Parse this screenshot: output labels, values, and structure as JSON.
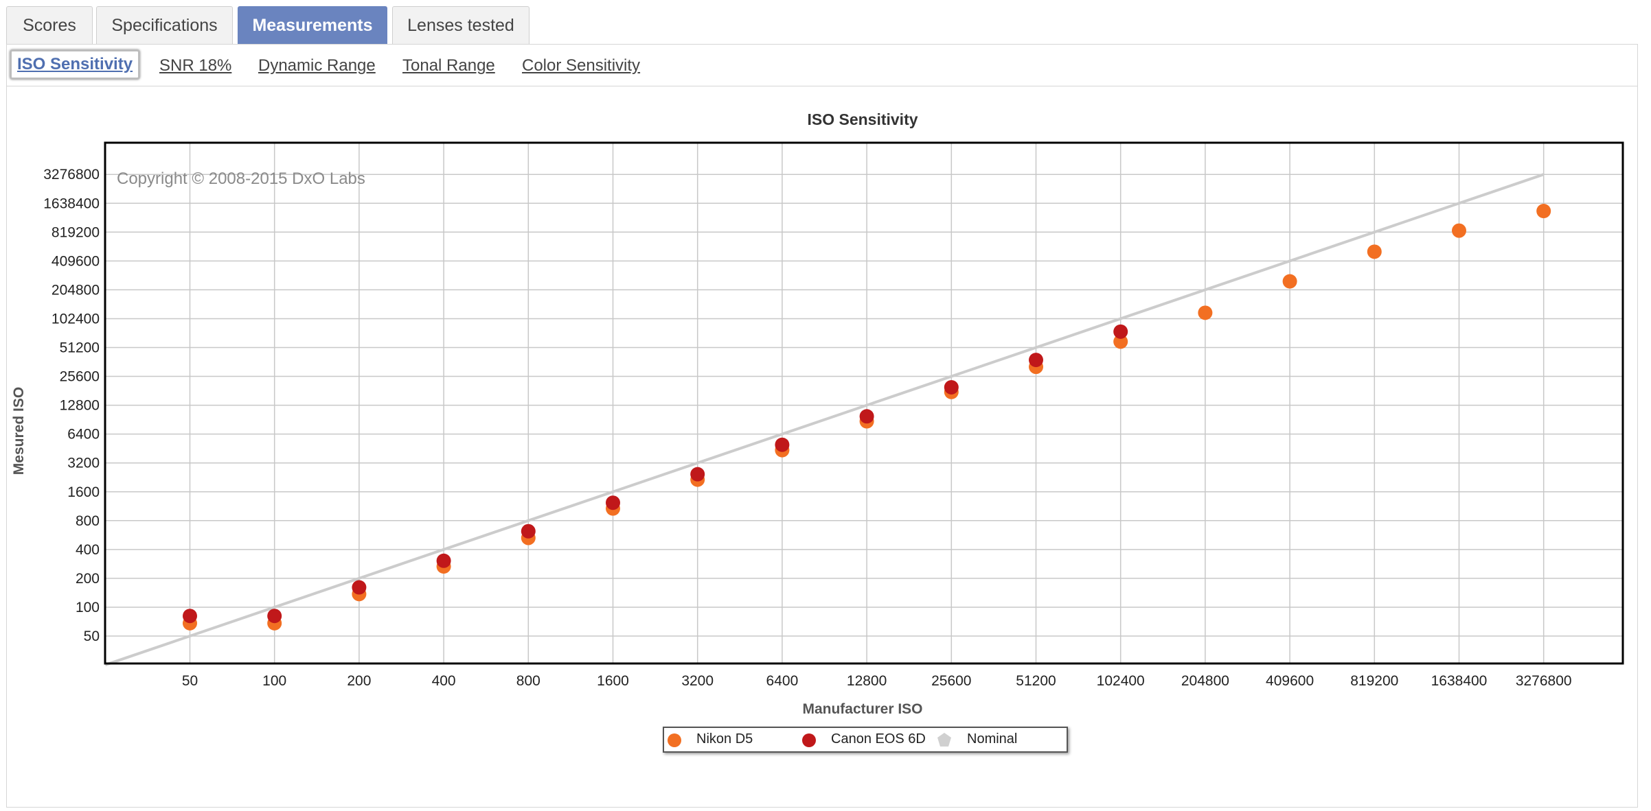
{
  "tabs": [
    {
      "label": "Scores",
      "active": false
    },
    {
      "label": "Specifications",
      "active": false
    },
    {
      "label": "Measurements",
      "active": true
    },
    {
      "label": "Lenses tested",
      "active": false
    }
  ],
  "subtabs": [
    {
      "label": "ISO Sensitivity",
      "active": true
    },
    {
      "label": "SNR 18%",
      "active": false
    },
    {
      "label": "Dynamic Range",
      "active": false
    },
    {
      "label": "Tonal Range",
      "active": false
    },
    {
      "label": "Color Sensitivity",
      "active": false
    }
  ],
  "colors": {
    "accent": "#6a84bf",
    "nikon": "#f26f22",
    "canon": "#c0181a",
    "nominal": "#cccccc"
  },
  "chart_data": {
    "type": "scatter",
    "title": "ISO Sensitivity",
    "xlabel": "Manufacturer ISO",
    "ylabel": "Mesured ISO",
    "watermark": "Copyright © 2008-2015 DxO Labs",
    "x_scale": "log2",
    "y_scale": "log2",
    "x_ticks": [
      "50",
      "100",
      "200",
      "400",
      "800",
      "1600",
      "3200",
      "6400",
      "12800",
      "25600",
      "51200",
      "102400",
      "204800",
      "409600",
      "819200",
      "1638400",
      "3276800"
    ],
    "y_ticks": [
      "50",
      "100",
      "200",
      "400",
      "800",
      "1600",
      "3200",
      "6400",
      "12800",
      "25600",
      "51200",
      "102400",
      "204800",
      "409600",
      "819200",
      "1638400",
      "3276800"
    ],
    "grid": true,
    "legend_position": "bottom-center",
    "series": [
      {
        "name": "Nikon D5",
        "color": "#f26f22",
        "x": [
          50,
          100,
          200,
          400,
          800,
          1600,
          3200,
          6400,
          12800,
          25600,
          51200,
          102400,
          204800,
          409600,
          819200,
          1638400,
          3276800
        ],
        "y": [
          68,
          68,
          137,
          266,
          528,
          1070,
          2140,
          4350,
          8700,
          17600,
          32200,
          59000,
          118000,
          251000,
          512000,
          849000,
          1360000
        ]
      },
      {
        "name": "Canon EOS 6D",
        "color": "#c0181a",
        "x": [
          50,
          100,
          200,
          400,
          800,
          1600,
          3200,
          6400,
          12800,
          25600,
          51200,
          102400
        ],
        "y": [
          81,
          81,
          161,
          305,
          620,
          1230,
          2440,
          4950,
          9800,
          19700,
          38000,
          75000
        ]
      },
      {
        "name": "Nominal",
        "color": "#cccccc",
        "x": [
          25,
          3276800
        ],
        "y": [
          25,
          3276800
        ]
      }
    ]
  }
}
